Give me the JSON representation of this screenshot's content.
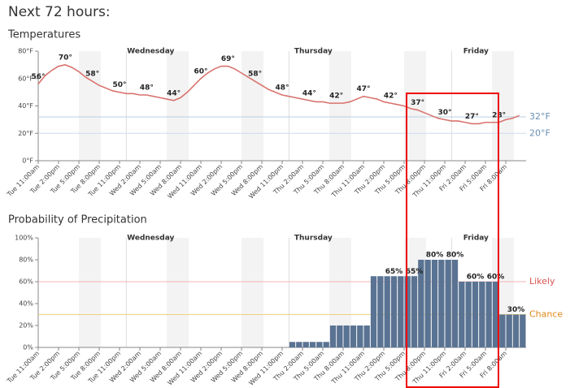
{
  "page_title": "Next 72 hours:",
  "day_labels": [
    "Wednesday",
    "Thursday",
    "Friday"
  ],
  "chart_data": [
    {
      "type": "line",
      "title": "Temperatures",
      "color": "#d9736e",
      "categories": [
        "Tue 11:00am",
        null,
        null,
        "Tue 2:00pm",
        null,
        null,
        "Tue 5:00pm",
        null,
        null,
        "Tue 8:00pm",
        null,
        null,
        "Tue 11:00pm",
        null,
        null,
        "Wed 2:00am",
        null,
        null,
        "Wed 5:00am",
        null,
        null,
        "Wed 8:00am",
        null,
        null,
        "Wed 11:00am",
        null,
        null,
        "Wed 2:00pm",
        null,
        null,
        "Wed 5:00pm",
        null,
        null,
        "Wed 8:00pm",
        null,
        null,
        "Wed 11:00pm",
        null,
        null,
        "Thu 2:00am",
        null,
        null,
        "Thu 5:00am",
        null,
        null,
        "Thu 8:00am",
        null,
        null,
        "Thu 11:00am",
        null,
        null,
        "Thu 2:00pm",
        null,
        null,
        "Thu 5:00pm",
        null,
        null,
        "Thu 8:00pm",
        null,
        null,
        "Thu 11:00pm",
        null,
        null,
        "Fri 2:00am",
        null,
        null,
        "Fri 5:00am",
        null,
        null,
        "Fri 8:00am",
        null,
        null
      ],
      "values": [
        56,
        62,
        66,
        69,
        70,
        68,
        65,
        61,
        58,
        55,
        53,
        51,
        50,
        49,
        49,
        48,
        48,
        47,
        46,
        45,
        44,
        46,
        50,
        55,
        60,
        64,
        67,
        69,
        69,
        67,
        64,
        61,
        58,
        55,
        52,
        50,
        48,
        47,
        46,
        45,
        44,
        43,
        43,
        42,
        42,
        42,
        43,
        45,
        47,
        46,
        45,
        43,
        42,
        41,
        40,
        38,
        37,
        35,
        33,
        31,
        30,
        29,
        29,
        28,
        27,
        27,
        28,
        28,
        28,
        30,
        31,
        33
      ],
      "value_labels": [
        "56°",
        null,
        null,
        null,
        "70°",
        null,
        null,
        null,
        "58°",
        null,
        null,
        null,
        "50°",
        null,
        null,
        null,
        "48°",
        null,
        null,
        null,
        "44°",
        null,
        null,
        null,
        "60°",
        null,
        null,
        null,
        "69°",
        null,
        null,
        null,
        "58°",
        null,
        null,
        null,
        "48°",
        null,
        null,
        null,
        "44°",
        null,
        null,
        null,
        "42°",
        null,
        null,
        null,
        "47°",
        null,
        null,
        null,
        "42°",
        null,
        null,
        null,
        "37°",
        null,
        null,
        null,
        "30°",
        null,
        null,
        null,
        "27°",
        null,
        null,
        null,
        "28°",
        null,
        null,
        null
      ],
      "ylim": [
        0,
        80
      ],
      "yticks": [
        {
          "value": 0,
          "label": "0°F"
        },
        {
          "value": 20,
          "label": "20°F"
        },
        {
          "value": 40,
          "label": "40°F"
        },
        {
          "value": 60,
          "label": "60°F"
        },
        {
          "value": 80,
          "label": "80°F"
        }
      ],
      "reference_lines": [
        {
          "value": 32,
          "label": "32°F",
          "color": "#b9cfe3",
          "label_color": "#6a8fb5"
        },
        {
          "value": 20,
          "label": "20°F",
          "color": "#cddceb",
          "label_color": "#6a8fb5"
        }
      ]
    },
    {
      "type": "bar",
      "title": "Probability of Precipitation",
      "color": "#5a7393",
      "categories": [
        "Tue 11:00am",
        null,
        null,
        "Tue 2:00pm",
        null,
        null,
        "Tue 5:00pm",
        null,
        null,
        "Tue 8:00pm",
        null,
        null,
        "Tue 11:00pm",
        null,
        null,
        "Wed 2:00am",
        null,
        null,
        "Wed 5:00am",
        null,
        null,
        "Wed 8:00am",
        null,
        null,
        "Wed 11:00am",
        null,
        null,
        "Wed 2:00pm",
        null,
        null,
        "Wed 5:00pm",
        null,
        null,
        "Wed 8:00pm",
        null,
        null,
        "Wed 11:00pm",
        null,
        null,
        "Thu 2:00am",
        null,
        null,
        "Thu 5:00am",
        null,
        null,
        "Thu 8:00am",
        null,
        null,
        "Thu 11:00am",
        null,
        null,
        "Thu 2:00pm",
        null,
        null,
        "Thu 5:00pm",
        null,
        null,
        "Thu 8:00pm",
        null,
        null,
        "Thu 11:00pm",
        null,
        null,
        "Fri 2:00am",
        null,
        null,
        "Fri 5:00am",
        null,
        null,
        "Fri 8:00am",
        null,
        null
      ],
      "values": [
        0,
        0,
        0,
        0,
        0,
        0,
        0,
        0,
        0,
        0,
        0,
        0,
        0,
        0,
        0,
        0,
        0,
        0,
        0,
        0,
        0,
        0,
        0,
        0,
        0,
        0,
        0,
        0,
        0,
        0,
        0,
        0,
        0,
        0,
        0,
        0,
        0,
        5,
        5,
        5,
        5,
        5,
        5,
        20,
        20,
        20,
        20,
        20,
        20,
        65,
        65,
        65,
        65,
        65,
        65,
        65,
        80,
        80,
        80,
        80,
        80,
        80,
        60,
        60,
        60,
        60,
        60,
        60,
        30,
        30,
        30,
        30
      ],
      "value_labels": [
        null,
        null,
        null,
        null,
        null,
        null,
        null,
        null,
        null,
        null,
        null,
        null,
        null,
        null,
        null,
        null,
        null,
        null,
        null,
        null,
        null,
        null,
        null,
        null,
        null,
        null,
        null,
        null,
        null,
        null,
        null,
        null,
        null,
        null,
        null,
        null,
        null,
        null,
        null,
        null,
        null,
        null,
        null,
        null,
        null,
        null,
        null,
        null,
        null,
        null,
        null,
        null,
        "65%",
        null,
        null,
        "65%",
        null,
        null,
        "80%",
        null,
        null,
        "80%",
        null,
        null,
        "60%",
        null,
        null,
        "60%",
        null,
        null,
        "30%",
        null
      ],
      "ylim": [
        0,
        100
      ],
      "yticks": [
        {
          "value": 0,
          "label": "0%"
        },
        {
          "value": 20,
          "label": "20%"
        },
        {
          "value": 40,
          "label": "40%"
        },
        {
          "value": 60,
          "label": "60%"
        },
        {
          "value": 80,
          "label": "80%"
        },
        {
          "value": 100,
          "label": "100%"
        }
      ],
      "reference_lines": [
        {
          "value": 60,
          "label": "Likely",
          "color": "#f5b5b5",
          "label_color": "#d9534f"
        },
        {
          "value": 30,
          "label": "Chance",
          "color": "#f2cf7e",
          "label_color": "#e0891c"
        }
      ]
    }
  ]
}
